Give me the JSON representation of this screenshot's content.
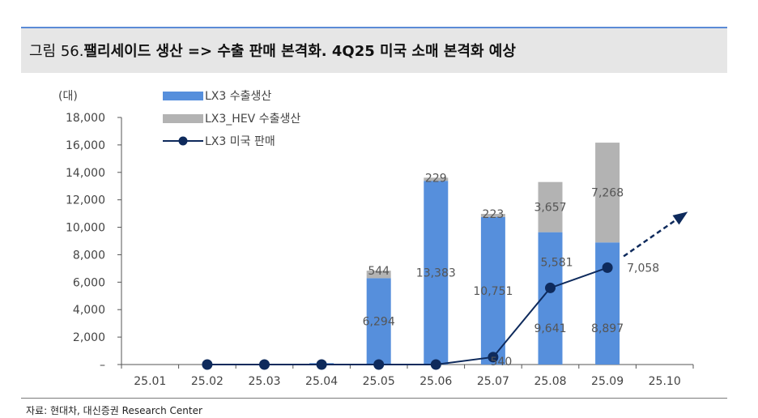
{
  "header": {
    "figure_no": "그림 56.",
    "title": "팰리세이드 생산 => 수출 판매 본격화. 4Q25 미국 소매 본격화 예상"
  },
  "source": "자료: 현대차, 대신증권 Research Center",
  "colors": {
    "lx3": "#568fdc",
    "hev": "#b3b3b3",
    "us": "#0e2a5c",
    "accent": "#5b8bd6"
  },
  "chart_data": {
    "type": "bar",
    "stacked": true,
    "unit_label": "(대)",
    "categories": [
      "25.01",
      "25.02",
      "25.03",
      "25.04",
      "25.05",
      "25.06",
      "25.07",
      "25.08",
      "25.09",
      "25.10"
    ],
    "ylim": [
      0,
      18000
    ],
    "yticks": [
      0,
      2000,
      4000,
      6000,
      8000,
      10000,
      12000,
      14000,
      16000,
      18000
    ],
    "ytick_labels": [
      "–",
      "2,000",
      "4,000",
      "6,000",
      "8,000",
      "10,000",
      "12,000",
      "14,000",
      "16,000",
      "18,000"
    ],
    "series": [
      {
        "name": "LX3 수출생산",
        "type": "bar",
        "values": [
          0,
          0,
          0,
          100,
          6294,
          13383,
          10751,
          9641,
          8897,
          null
        ],
        "labels": [
          "",
          "",
          "",
          "",
          "6,294",
          "13,383",
          "10,751",
          "9,641",
          "8,897",
          ""
        ]
      },
      {
        "name": "LX3_HEV 수출생산",
        "type": "bar",
        "values": [
          0,
          0,
          0,
          0,
          544,
          229,
          223,
          3657,
          7268,
          null
        ],
        "labels": [
          "",
          "",
          "",
          "",
          "544",
          "229",
          "223",
          "3,657",
          "7,268",
          ""
        ]
      },
      {
        "name": "LX3 미국 판매",
        "type": "line",
        "values": [
          null,
          0,
          0,
          0,
          0,
          0,
          540,
          5581,
          7058,
          null
        ],
        "labels": [
          "",
          "",
          "",
          "",
          "",
          "",
          "540",
          "5,581",
          "7,058",
          ""
        ]
      }
    ],
    "legend_position": "top-left",
    "grid": false,
    "annotation": "dashed arrow trending upward after 25.09"
  }
}
